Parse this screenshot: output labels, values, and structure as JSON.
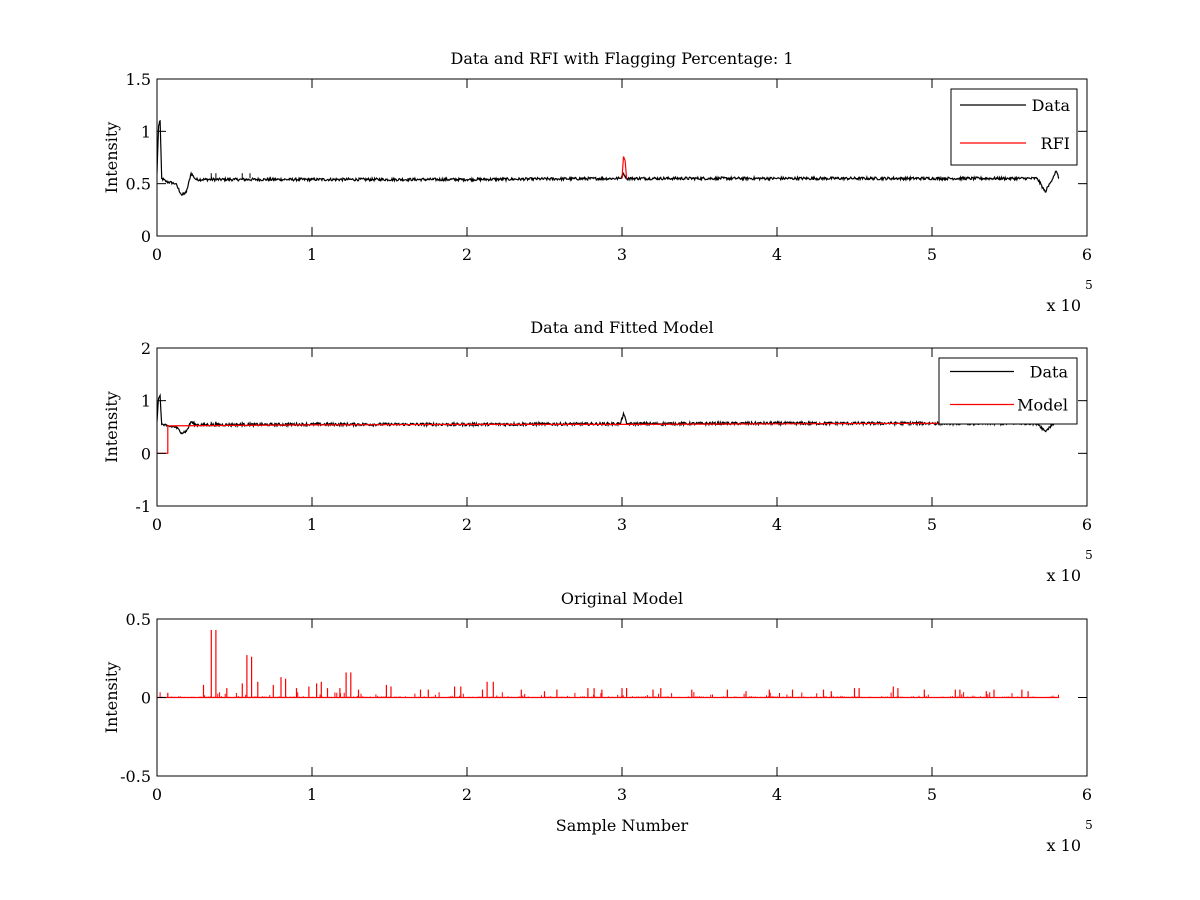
{
  "chart_data": [
    {
      "type": "line",
      "title": "Data and RFI with Flagging Percentage: 1",
      "xlabel": "",
      "ylabel": "Intensity",
      "xlim": [
        0,
        6
      ],
      "ylim": [
        0,
        1.5
      ],
      "x_ticks": [
        0,
        1,
        2,
        3,
        4,
        5,
        6
      ],
      "y_ticks": [
        0,
        0.5,
        1,
        1.5
      ],
      "x_tick_labels": [
        "0",
        "1",
        "2",
        "3",
        "4",
        "5",
        "6"
      ],
      "y_tick_labels": [
        "0",
        "0.5",
        "1",
        "1.5"
      ],
      "x_multiplier": "x 10",
      "x_exponent": "5",
      "legend_position": "top-right",
      "grid": false,
      "series": [
        {
          "name": "Data",
          "color": "#000000",
          "baseline": 0.54,
          "points": [
            [
              0,
              0.6
            ],
            [
              0.01,
              1.05
            ],
            [
              0.02,
              1.1
            ],
            [
              0.03,
              0.55
            ],
            [
              0.06,
              0.52
            ],
            [
              0.12,
              0.5
            ],
            [
              0.16,
              0.39
            ],
            [
              0.19,
              0.42
            ],
            [
              0.22,
              0.6
            ],
            [
              0.25,
              0.54
            ],
            [
              0.5,
              0.54
            ],
            [
              1.0,
              0.54
            ],
            [
              2.0,
              0.54
            ],
            [
              2.99,
              0.55
            ],
            [
              3.01,
              0.6
            ],
            [
              3.03,
              0.55
            ],
            [
              4.0,
              0.55
            ],
            [
              5.0,
              0.55
            ],
            [
              5.68,
              0.55
            ],
            [
              5.73,
              0.42
            ],
            [
              5.76,
              0.5
            ],
            [
              5.8,
              0.62
            ],
            [
              5.82,
              0.55
            ]
          ]
        },
        {
          "name": "RFI",
          "color": "#ff0000",
          "points": [
            [
              3.0,
              0.55
            ],
            [
              3.01,
              0.76
            ],
            [
              3.02,
              0.72
            ],
            [
              3.03,
              0.55
            ]
          ]
        }
      ]
    },
    {
      "type": "line",
      "title": "Data and Fitted Model",
      "xlabel": "",
      "ylabel": "Intensity",
      "xlim": [
        0,
        6
      ],
      "ylim": [
        -1,
        2
      ],
      "x_ticks": [
        0,
        1,
        2,
        3,
        4,
        5,
        6
      ],
      "y_ticks": [
        -1,
        0,
        1,
        2
      ],
      "x_tick_labels": [
        "0",
        "1",
        "2",
        "3",
        "4",
        "5",
        "6"
      ],
      "y_tick_labels": [
        "-1",
        "0",
        "1",
        "2"
      ],
      "x_multiplier": "x 10",
      "x_exponent": "5",
      "legend_position": "top-right",
      "grid": false,
      "series": [
        {
          "name": "Data",
          "color": "#000000",
          "points": [
            [
              0,
              0.6
            ],
            [
              0.01,
              1.05
            ],
            [
              0.02,
              1.1
            ],
            [
              0.03,
              0.55
            ],
            [
              0.06,
              0.52
            ],
            [
              0.12,
              0.5
            ],
            [
              0.16,
              0.39
            ],
            [
              0.19,
              0.42
            ],
            [
              0.22,
              0.6
            ],
            [
              0.25,
              0.54
            ],
            [
              1.0,
              0.55
            ],
            [
              2.0,
              0.55
            ],
            [
              2.99,
              0.56
            ],
            [
              3.01,
              0.76
            ],
            [
              3.03,
              0.56
            ],
            [
              4.0,
              0.57
            ],
            [
              5.0,
              0.57
            ],
            [
              5.68,
              0.57
            ],
            [
              5.73,
              0.42
            ],
            [
              5.76,
              0.5
            ],
            [
              5.8,
              0.62
            ],
            [
              5.82,
              0.56
            ]
          ]
        },
        {
          "name": "Model",
          "color": "#ff0000",
          "points": [
            [
              0,
              0
            ],
            [
              0.07,
              0
            ],
            [
              0.07,
              0.52
            ],
            [
              0.5,
              0.53
            ],
            [
              1.0,
              0.54
            ],
            [
              2.0,
              0.55
            ],
            [
              3.0,
              0.55
            ],
            [
              4.0,
              0.56
            ],
            [
              5.0,
              0.57
            ],
            [
              5.82,
              0.57
            ]
          ]
        }
      ]
    },
    {
      "type": "line",
      "title": "Original Model",
      "xlabel": "Sample Number",
      "ylabel": "Intensity",
      "xlim": [
        0,
        6
      ],
      "ylim": [
        -0.5,
        0.5
      ],
      "x_ticks": [
        0,
        1,
        2,
        3,
        4,
        5,
        6
      ],
      "y_ticks": [
        -0.5,
        0,
        0.5
      ],
      "x_tick_labels": [
        "0",
        "1",
        "2",
        "3",
        "4",
        "5",
        "6"
      ],
      "y_tick_labels": [
        "-0.5",
        "0",
        "0.5"
      ],
      "x_multiplier": "x 10",
      "x_exponent": "5",
      "grid": false,
      "series": [
        {
          "color": "#ff0000",
          "baseline": 0,
          "x_end": 5.82,
          "spikes": [
            [
              0.07,
              0.03
            ],
            [
              0.3,
              0.08
            ],
            [
              0.35,
              0.43
            ],
            [
              0.38,
              0.43
            ],
            [
              0.45,
              0.06
            ],
            [
              0.55,
              0.09
            ],
            [
              0.58,
              0.27
            ],
            [
              0.61,
              0.26
            ],
            [
              0.65,
              0.1
            ],
            [
              0.75,
              0.08
            ],
            [
              0.8,
              0.13
            ],
            [
              0.83,
              0.12
            ],
            [
              0.9,
              0.06
            ],
            [
              0.98,
              0.07
            ],
            [
              1.03,
              0.09
            ],
            [
              1.06,
              0.1
            ],
            [
              1.1,
              0.06
            ],
            [
              1.18,
              0.06
            ],
            [
              1.22,
              0.16
            ],
            [
              1.25,
              0.16
            ],
            [
              1.3,
              0.05
            ],
            [
              1.48,
              0.08
            ],
            [
              1.51,
              0.07
            ],
            [
              1.7,
              0.05
            ],
            [
              1.75,
              0.05
            ],
            [
              1.92,
              0.07
            ],
            [
              1.96,
              0.07
            ],
            [
              2.1,
              0.05
            ],
            [
              2.13,
              0.1
            ],
            [
              2.17,
              0.1
            ],
            [
              2.35,
              0.05
            ],
            [
              2.5,
              0.04
            ],
            [
              2.58,
              0.05
            ],
            [
              2.78,
              0.06
            ],
            [
              2.82,
              0.06
            ],
            [
              2.87,
              0.05
            ],
            [
              3.0,
              0.06
            ],
            [
              3.03,
              0.06
            ],
            [
              3.2,
              0.05
            ],
            [
              3.25,
              0.06
            ],
            [
              3.45,
              0.05
            ],
            [
              3.68,
              0.05
            ],
            [
              3.8,
              0.04
            ],
            [
              3.95,
              0.05
            ],
            [
              4.1,
              0.05
            ],
            [
              4.3,
              0.05
            ],
            [
              4.35,
              0.04
            ],
            [
              4.5,
              0.06
            ],
            [
              4.53,
              0.06
            ],
            [
              4.75,
              0.07
            ],
            [
              4.78,
              0.06
            ],
            [
              4.95,
              0.05
            ],
            [
              5.15,
              0.05
            ],
            [
              5.18,
              0.05
            ],
            [
              5.35,
              0.04
            ],
            [
              5.4,
              0.05
            ],
            [
              5.58,
              0.05
            ],
            [
              5.62,
              0.04
            ]
          ]
        }
      ]
    }
  ]
}
